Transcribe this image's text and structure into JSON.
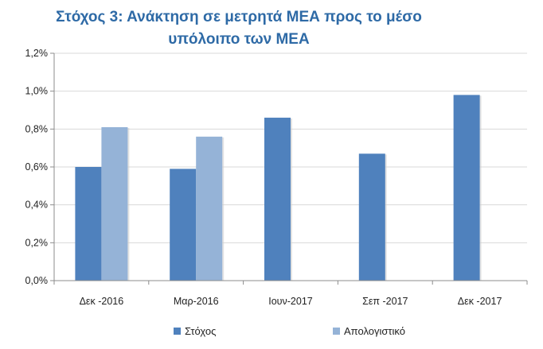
{
  "chart_data": {
    "type": "bar",
    "title_lines": [
      "Στόχος 3: Ανάκτηση σε μετρητά ΜΕΑ προς το μέσο",
      "υπόλοιπο των ΜΕΑ"
    ],
    "categories": [
      "Δεκ -2016",
      "Μαρ-2016",
      "Ιουν-2017",
      "Σεπ -2017",
      "Δεκ -2017"
    ],
    "series": [
      {
        "name": "Στόχος",
        "color": "#4f81bd",
        "values": [
          0.6,
          0.59,
          0.86,
          0.67,
          0.98
        ]
      },
      {
        "name": "Απολογιστικό",
        "color": "#95b3d7",
        "values": [
          0.81,
          0.76,
          null,
          null,
          null
        ]
      }
    ],
    "y_ticks": [
      "0,0%",
      "0,2%",
      "0,4%",
      "0,6%",
      "0,8%",
      "1,0%",
      "1,2%"
    ],
    "ylim": [
      0,
      1.2
    ],
    "y_unit": "%",
    "grid": true,
    "legend_position": "bottom"
  }
}
